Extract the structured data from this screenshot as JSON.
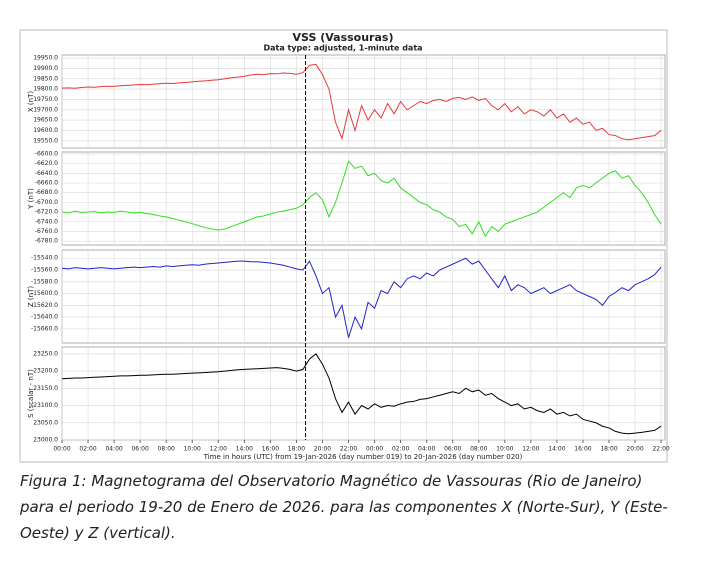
{
  "chart_data": {
    "type": "line",
    "title": "VSS (Vassouras)",
    "subtitle": "Data type: adjusted, 1-minute data",
    "x_label": "Time in hours (UTC) from 19-Jan-2026 (day number 019) to 20-Jan-2026 (day number 020)",
    "grid": true,
    "marker_x": 18.7,
    "xlim": [
      0,
      46.3
    ],
    "xticks": [
      {
        "value": 0,
        "label": "00:00"
      },
      {
        "value": 2,
        "label": "02:00"
      },
      {
        "value": 4,
        "label": "04:00"
      },
      {
        "value": 6,
        "label": "06:00"
      },
      {
        "value": 8,
        "label": "08:00"
      },
      {
        "value": 10,
        "label": "10:00"
      },
      {
        "value": 12,
        "label": "12:00"
      },
      {
        "value": 14,
        "label": "14:00"
      },
      {
        "value": 16,
        "label": "16:00"
      },
      {
        "value": 18,
        "label": "18:00"
      },
      {
        "value": 20,
        "label": "20:00"
      },
      {
        "value": 22,
        "label": "22:00"
      },
      {
        "value": 24,
        "label": "00:00"
      },
      {
        "value": 26,
        "label": "02:00"
      },
      {
        "value": 28,
        "label": "04:00"
      },
      {
        "value": 30,
        "label": "06:00"
      },
      {
        "value": 32,
        "label": "08:00"
      },
      {
        "value": 34,
        "label": "10:00"
      },
      {
        "value": 36,
        "label": "12:00"
      },
      {
        "value": 38,
        "label": "14:00"
      },
      {
        "value": 40,
        "label": "16:00"
      },
      {
        "value": 42,
        "label": "18:00"
      },
      {
        "value": 44,
        "label": "20:00"
      },
      {
        "value": 46,
        "label": "22:00"
      }
    ],
    "x": [
      0,
      0.5,
      1,
      1.5,
      2,
      2.5,
      3,
      3.5,
      4,
      4.5,
      5,
      5.5,
      6,
      6.5,
      7,
      7.5,
      8,
      8.5,
      9,
      9.5,
      10,
      10.5,
      11,
      11.5,
      12,
      12.5,
      13,
      13.5,
      14,
      14.5,
      15,
      15.5,
      16,
      16.5,
      17,
      17.5,
      18,
      18.5,
      19,
      19.5,
      20,
      20.5,
      21,
      21.5,
      22,
      22.5,
      23,
      23.5,
      24,
      24.5,
      25,
      25.5,
      26,
      26.5,
      27,
      27.5,
      28,
      28.5,
      29,
      29.5,
      30,
      30.5,
      31,
      31.5,
      32,
      32.5,
      33,
      33.5,
      34,
      34.5,
      35,
      35.5,
      36,
      36.5,
      37,
      37.5,
      38,
      38.5,
      39,
      39.5,
      40,
      40.5,
      41,
      41.5,
      42,
      42.5,
      43,
      43.5,
      44,
      44.5,
      45,
      45.5,
      46
    ],
    "panels": [
      {
        "y_label": "X (nT)",
        "color": "#e63a3a",
        "ylim": [
          19515,
          19965
        ],
        "yticks": [
          {
            "value": 19550,
            "label": "19550.0"
          },
          {
            "value": 19600,
            "label": "19600.0"
          },
          {
            "value": 19650,
            "label": "19650.0"
          },
          {
            "value": 19700,
            "label": "19700.0"
          },
          {
            "value": 19750,
            "label": "19750.0"
          },
          {
            "value": 19800,
            "label": "19800.0"
          },
          {
            "value": 19850,
            "label": "19850.0"
          },
          {
            "value": 19900,
            "label": "19900.0"
          },
          {
            "value": 19950,
            "label": "19950.0"
          }
        ],
        "values": [
          19805,
          19806,
          19804,
          19808,
          19810,
          19809,
          19812,
          19814,
          19813,
          19816,
          19818,
          19820,
          19822,
          19821,
          19824,
          19826,
          19828,
          19827,
          19830,
          19832,
          19835,
          19838,
          19840,
          19843,
          19845,
          19850,
          19855,
          19858,
          19862,
          19868,
          19872,
          19870,
          19875,
          19874,
          19878,
          19876,
          19872,
          19880,
          19915,
          19920,
          19870,
          19800,
          19640,
          19560,
          19700,
          19600,
          19720,
          19650,
          19700,
          19660,
          19730,
          19680,
          19740,
          19700,
          19720,
          19740,
          19730,
          19745,
          19750,
          19740,
          19755,
          19760,
          19750,
          19762,
          19745,
          19755,
          19720,
          19700,
          19730,
          19690,
          19715,
          19680,
          19700,
          19690,
          19670,
          19700,
          19660,
          19680,
          19640,
          19660,
          19630,
          19640,
          19600,
          19610,
          19580,
          19575,
          19560,
          19555,
          19560,
          19565,
          19570,
          19575,
          19600
        ]
      },
      {
        "y_label": "Y (nT)",
        "color": "#33dd22",
        "ylim": [
          -6788,
          -6596
        ],
        "yticks": [
          {
            "value": -6780,
            "label": "-6780.0"
          },
          {
            "value": -6760,
            "label": "-6760.0"
          },
          {
            "value": -6740,
            "label": "-6740.0"
          },
          {
            "value": -6720,
            "label": "-6720.0"
          },
          {
            "value": -6700,
            "label": "-6700.0"
          },
          {
            "value": -6680,
            "label": "-6680.0"
          },
          {
            "value": -6660,
            "label": "-6660.0"
          },
          {
            "value": -6640,
            "label": "-6640.0"
          },
          {
            "value": -6620,
            "label": "-6620.0"
          },
          {
            "value": -6600,
            "label": "-6600.0"
          }
        ],
        "values": [
          -6720,
          -6722,
          -6718,
          -6721,
          -6720,
          -6719,
          -6722,
          -6720,
          -6721,
          -6718,
          -6720,
          -6722,
          -6721,
          -6723,
          -6725,
          -6728,
          -6730,
          -6733,
          -6737,
          -6740,
          -6744,
          -6748,
          -6752,
          -6755,
          -6757,
          -6755,
          -6750,
          -6745,
          -6740,
          -6735,
          -6730,
          -6728,
          -6724,
          -6720,
          -6718,
          -6715,
          -6712,
          -6705,
          -6690,
          -6680,
          -6695,
          -6730,
          -6700,
          -6660,
          -6615,
          -6630,
          -6625,
          -6645,
          -6640,
          -6655,
          -6660,
          -6650,
          -6670,
          -6680,
          -6690,
          -6700,
          -6705,
          -6715,
          -6720,
          -6730,
          -6735,
          -6750,
          -6745,
          -6765,
          -6740,
          -6770,
          -6750,
          -6760,
          -6745,
          -6740,
          -6735,
          -6730,
          -6725,
          -6720,
          -6710,
          -6700,
          -6690,
          -6680,
          -6690,
          -6670,
          -6665,
          -6670,
          -6660,
          -6650,
          -6640,
          -6635,
          -6650,
          -6645,
          -6665,
          -6680,
          -6700,
          -6725,
          -6745
        ]
      },
      {
        "y_label": "Z (nT)",
        "color": "#2222cc",
        "ylim": [
          -15684,
          -15526
        ],
        "yticks": [
          {
            "value": -15660,
            "label": "-15660.0"
          },
          {
            "value": -15640,
            "label": "-15640.0"
          },
          {
            "value": -15620,
            "label": "-15620.0"
          },
          {
            "value": -15600,
            "label": "-15600.0"
          },
          {
            "value": -15580,
            "label": "-15580.0"
          },
          {
            "value": -15560,
            "label": "-15560.0"
          },
          {
            "value": -15540,
            "label": "-15540.0"
          }
        ],
        "values": [
          -15557,
          -15558,
          -15556,
          -15557,
          -15558,
          -15557,
          -15556,
          -15557,
          -15558,
          -15557,
          -15556,
          -15555,
          -15556,
          -15555,
          -15554,
          -15555,
          -15553,
          -15554,
          -15553,
          -15552,
          -15551,
          -15552,
          -15550,
          -15549,
          -15548,
          -15547,
          -15546,
          -15545,
          -15545,
          -15546,
          -15546,
          -15547,
          -15548,
          -15550,
          -15552,
          -15555,
          -15558,
          -15560,
          -15545,
          -15570,
          -15600,
          -15590,
          -15640,
          -15620,
          -15675,
          -15640,
          -15660,
          -15615,
          -15625,
          -15595,
          -15600,
          -15580,
          -15590,
          -15575,
          -15570,
          -15575,
          -15565,
          -15570,
          -15560,
          -15555,
          -15550,
          -15545,
          -15540,
          -15550,
          -15545,
          -15560,
          -15575,
          -15590,
          -15570,
          -15595,
          -15585,
          -15590,
          -15600,
          -15595,
          -15590,
          -15600,
          -15595,
          -15590,
          -15585,
          -15595,
          -15600,
          -15605,
          -15610,
          -15620,
          -15605,
          -15598,
          -15590,
          -15595,
          -15585,
          -15580,
          -15575,
          -15568,
          -15555
        ]
      },
      {
        "y_label": "S (scalar - nT)",
        "color": "#000000",
        "ylim": [
          23000,
          23270
        ],
        "yticks": [
          {
            "value": 23000,
            "label": "23000.0"
          },
          {
            "value": 23050,
            "label": "23050.0"
          },
          {
            "value": 23100,
            "label": "23100.0"
          },
          {
            "value": 23150,
            "label": "23150.0"
          },
          {
            "value": 23200,
            "label": "23200.0"
          },
          {
            "value": 23250,
            "label": "23250.0"
          }
        ],
        "values": [
          23178,
          23179,
          23180,
          23180,
          23181,
          23182,
          23183,
          23184,
          23185,
          23186,
          23186,
          23187,
          23188,
          23188,
          23189,
          23190,
          23191,
          23191,
          23192,
          23193,
          23194,
          23195,
          23196,
          23197,
          23198,
          23200,
          23202,
          23204,
          23205,
          23206,
          23207,
          23208,
          23209,
          23210,
          23208,
          23205,
          23200,
          23205,
          23235,
          23250,
          23220,
          23180,
          23120,
          23080,
          23110,
          23075,
          23100,
          23090,
          23105,
          23095,
          23100,
          23098,
          23105,
          23110,
          23112,
          23118,
          23120,
          23125,
          23130,
          23135,
          23140,
          23135,
          23150,
          23140,
          23145,
          23130,
          23135,
          23120,
          23110,
          23100,
          23105,
          23090,
          23095,
          23085,
          23080,
          23090,
          23075,
          23080,
          23070,
          23075,
          23060,
          23055,
          23050,
          23040,
          23035,
          23025,
          23020,
          23018,
          23020,
          23022,
          23025,
          23028,
          23040
        ]
      }
    ]
  },
  "caption": "Figura 1: Magnetograma del Observatorio Magnético de Vassouras (Rio de Janeiro) para el periodo 19-20 de Enero de 2026. para las componentes X (Norte-Sur), Y (Este-Oeste) y Z (vertical)."
}
